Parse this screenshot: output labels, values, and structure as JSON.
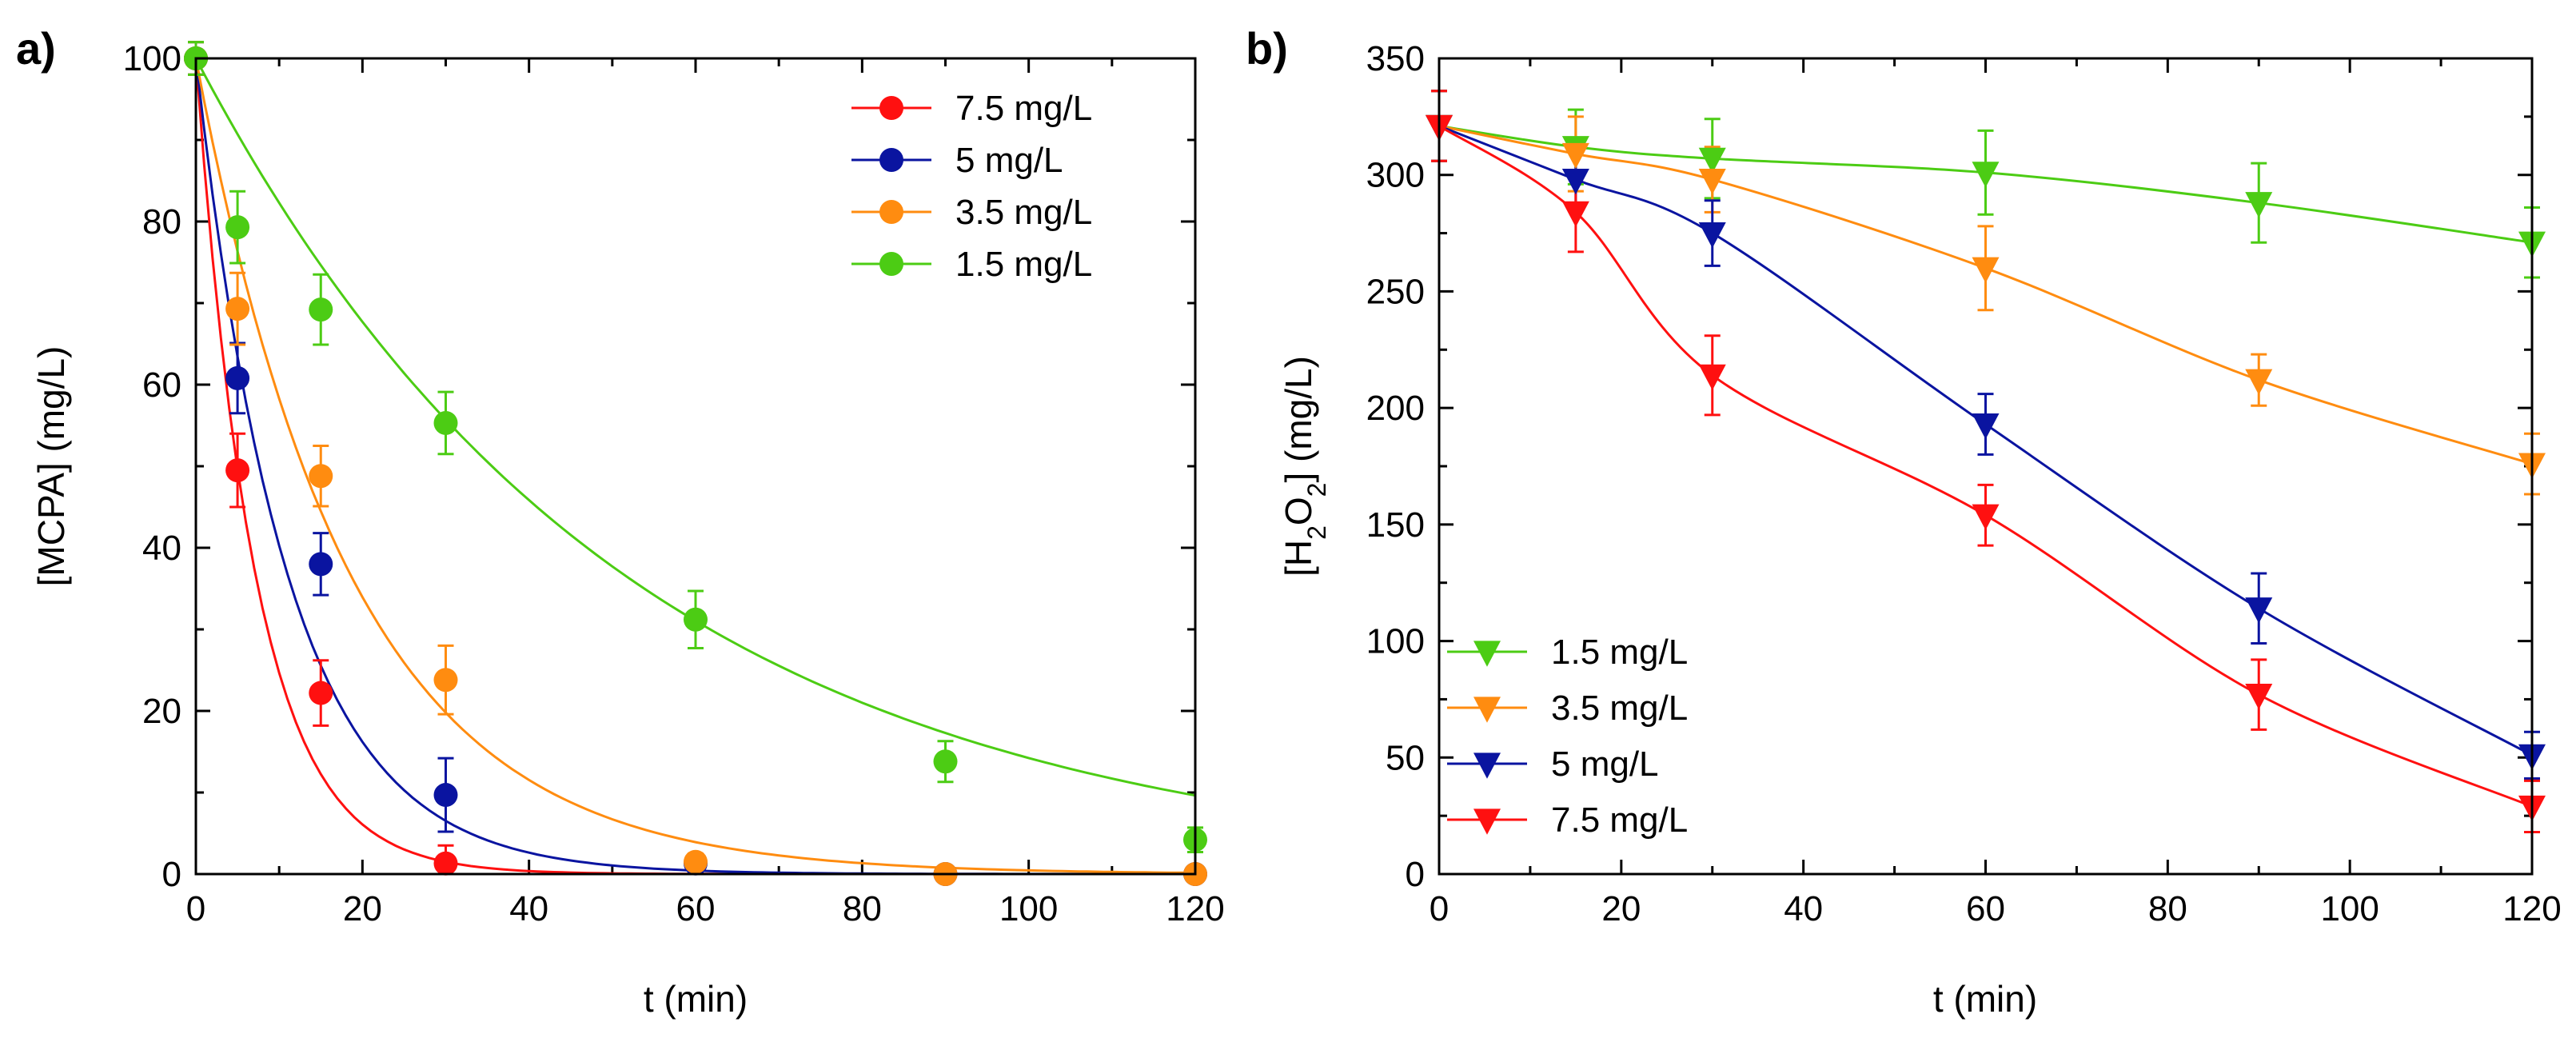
{
  "chart_data": [
    {
      "type": "scatter",
      "panel_label": "a)",
      "title": "",
      "xlabel": "t (min)",
      "ylabel": "[MCPA] (mg/L)",
      "xlim": [
        0,
        120
      ],
      "ylim": [
        0,
        100
      ],
      "xticks": [
        0,
        20,
        40,
        60,
        80,
        100,
        120
      ],
      "yticks": [
        0,
        20,
        40,
        60,
        80,
        100
      ],
      "marker": "circle",
      "legend_position": "top-right",
      "series": [
        {
          "name": "7.5 mg/L",
          "color": "#ff1010",
          "x": [
            0,
            5,
            15,
            30
          ],
          "y": [
            100,
            49.5,
            22.2,
            1.3
          ],
          "err": [
            2,
            4.5,
            4,
            2.2
          ],
          "fit_k": 0.14
        },
        {
          "name": "5 mg/L",
          "color": "#0a14a0",
          "x": [
            0,
            5,
            15,
            30,
            60,
            90,
            120
          ],
          "y": [
            100,
            60.8,
            38,
            9.7,
            1.3,
            0,
            0
          ],
          "err": [
            2,
            4.3,
            3.8,
            4.5,
            1,
            0.5,
            0.5
          ],
          "fit_k": 0.091
        },
        {
          "name": "3.5 mg/L",
          "color": "#ff8c10",
          "x": [
            0,
            5,
            15,
            30,
            60,
            90,
            120
          ],
          "y": [
            100,
            69.3,
            48.8,
            23.8,
            1.5,
            0,
            0
          ],
          "err": [
            2,
            4.4,
            3.7,
            4.2,
            1,
            0.5,
            0.5
          ],
          "fit_k": 0.054
        },
        {
          "name": "1.5 mg/L",
          "color": "#4ccc14",
          "x": [
            0,
            5,
            15,
            30,
            60,
            90,
            120
          ],
          "y": [
            100,
            79.3,
            69.2,
            55.3,
            31.2,
            13.8,
            4.2
          ],
          "err": [
            2,
            4.4,
            4.3,
            3.8,
            3.5,
            2.5,
            1.5
          ],
          "fit_k": 0.0195
        }
      ]
    },
    {
      "type": "scatter",
      "panel_label": "b)",
      "title": "",
      "xlabel": "t (min)",
      "ylabel_parts": {
        "pre": "[H",
        "sub1": "2",
        "mid": "O",
        "sub2": "2",
        "post": "] (mg/L)"
      },
      "xlim": [
        0,
        120
      ],
      "ylim": [
        0,
        350
      ],
      "xticks": [
        0,
        20,
        40,
        60,
        80,
        100,
        120
      ],
      "yticks": [
        0,
        50,
        100,
        150,
        200,
        250,
        300,
        350
      ],
      "marker": "triangle-down",
      "legend_position": "bottom-left",
      "series": [
        {
          "name": "1.5 mg/L",
          "color": "#4ccc14",
          "x": [
            0,
            15,
            30,
            60,
            90,
            120
          ],
          "y": [
            321,
            312,
            307,
            301,
            288,
            271
          ],
          "err": [
            15,
            16,
            17,
            18,
            17,
            15
          ]
        },
        {
          "name": "3.5 mg/L",
          "color": "#ff8c10",
          "x": [
            0,
            15,
            30,
            60,
            90,
            120
          ],
          "y": [
            321,
            309,
            298,
            260,
            212,
            176
          ],
          "err": [
            15,
            16,
            14,
            18,
            11,
            13
          ]
        },
        {
          "name": "5 mg/L",
          "color": "#0a14a0",
          "x": [
            0,
            15,
            30,
            60,
            90,
            120
          ],
          "y": [
            321,
            298,
            275,
            193,
            114,
            51
          ],
          "err": [
            15,
            13,
            14,
            13,
            15,
            10
          ]
        },
        {
          "name": "7.5 mg/L",
          "color": "#ff1010",
          "x": [
            0,
            15,
            30,
            60,
            90,
            120
          ],
          "y": [
            321,
            284,
            214,
            154,
            77,
            29
          ],
          "err": [
            15,
            17,
            17,
            13,
            15,
            11
          ]
        }
      ]
    }
  ]
}
